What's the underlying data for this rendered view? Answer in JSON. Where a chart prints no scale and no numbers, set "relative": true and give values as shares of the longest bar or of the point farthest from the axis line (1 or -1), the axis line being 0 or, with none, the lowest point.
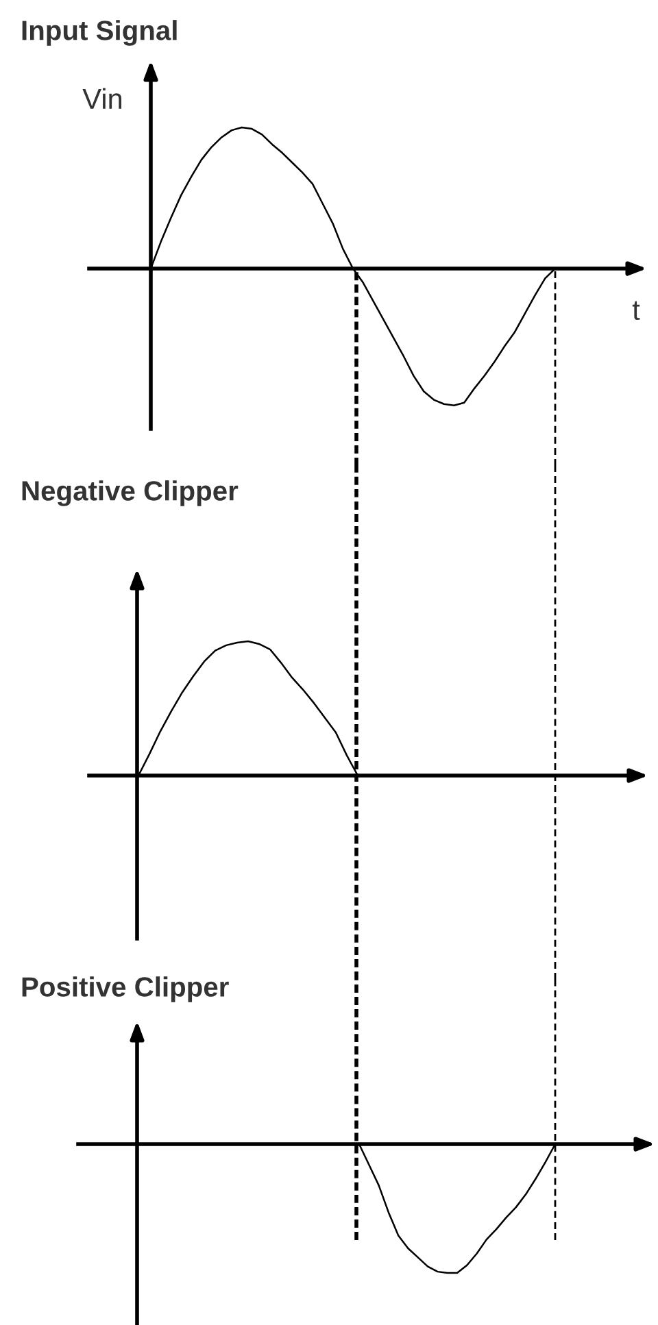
{
  "chart_data": [
    {
      "type": "line",
      "title": "Input Signal",
      "xlabel": "t",
      "ylabel": "Vin",
      "relative": true,
      "categories": [
        null,
        null,
        null,
        null,
        null,
        null,
        null,
        null,
        null,
        null,
        null,
        null,
        null,
        null,
        null,
        null,
        null,
        null,
        null,
        null,
        null,
        null,
        null,
        null,
        null,
        null,
        null,
        null,
        null,
        null,
        null,
        null,
        null,
        null,
        null,
        null,
        null,
        null,
        null,
        null,
        null
      ],
      "series": [
        {
          "color": "#000000",
          "values": [
            0,
            0.19,
            0.36,
            0.52,
            0.65,
            0.77,
            0.86,
            0.93,
            0.98,
            1.0,
            0.99,
            0.95,
            0.88,
            0.82,
            0.75,
            0.68,
            0.6,
            0.46,
            0.32,
            0.14,
            0,
            -0.1,
            -0.23,
            -0.36,
            -0.49,
            -0.62,
            -0.76,
            -0.87,
            -0.93,
            -0.96,
            -0.97,
            -0.95,
            -0.85,
            -0.76,
            -0.66,
            -0.55,
            -0.45,
            -0.32,
            -0.19,
            -0.07,
            0
          ]
        }
      ]
    },
    {
      "type": "line",
      "title": "Negative Clipper",
      "relative": true,
      "categories": [
        null,
        null,
        null,
        null,
        null,
        null,
        null,
        null,
        null,
        null,
        null,
        null,
        null,
        null,
        null,
        null,
        null,
        null,
        null,
        null,
        null,
        null,
        null,
        null,
        null,
        null,
        null,
        null,
        null,
        null,
        null,
        null,
        null,
        null,
        null,
        null,
        null,
        null,
        null,
        null,
        null
      ],
      "series": [
        {
          "color": "#000000",
          "values": [
            0,
            0.16,
            0.33,
            0.48,
            0.62,
            0.74,
            0.85,
            0.93,
            0.97,
            0.99,
            1.0,
            0.98,
            0.94,
            0.84,
            0.73,
            0.64,
            0.54,
            0.43,
            0.32,
            0.15,
            0,
            null,
            null,
            null,
            null,
            null,
            null,
            null,
            null,
            null,
            null,
            null,
            null,
            null,
            null,
            null,
            null,
            null,
            null,
            null,
            null
          ]
        }
      ]
    },
    {
      "type": "line",
      "title": "Positive Clipper",
      "relative": true,
      "categories": [
        null,
        null,
        null,
        null,
        null,
        null,
        null,
        null,
        null,
        null,
        null,
        null,
        null,
        null,
        null,
        null,
        null,
        null,
        null,
        null,
        null,
        null,
        null,
        null,
        null,
        null,
        null,
        null,
        null,
        null,
        null,
        null,
        null,
        null,
        null,
        null,
        null,
        null,
        null,
        null,
        null
      ],
      "series": [
        {
          "color": "#000000",
          "values": [
            null,
            null,
            null,
            null,
            null,
            null,
            null,
            null,
            null,
            null,
            null,
            null,
            null,
            null,
            null,
            null,
            null,
            null,
            null,
            null,
            0,
            -0.16,
            -0.32,
            -0.53,
            -0.71,
            -0.81,
            -0.88,
            -0.95,
            -0.99,
            -1.0,
            -1.0,
            -0.94,
            -0.85,
            -0.74,
            -0.66,
            -0.57,
            -0.49,
            -0.39,
            -0.27,
            -0.14,
            0
          ]
        }
      ]
    }
  ]
}
